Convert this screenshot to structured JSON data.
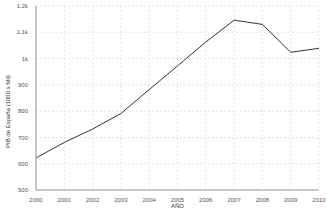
{
  "chart_data": {
    "type": "line",
    "x_label": "AÑO",
    "y_label": "PIB de España (1000 x Mil)",
    "x": [
      2000,
      2001,
      2002,
      2003,
      2004,
      2005,
      2006,
      2007,
      2008,
      2009,
      2010
    ],
    "values": [
      622,
      681,
      732,
      791,
      882,
      972,
      1063,
      1146,
      1130,
      1024,
      1039
    ],
    "color": "#333333",
    "xlim": [
      2000,
      2010
    ],
    "xticks": [
      2000,
      2001,
      2002,
      2003,
      2004,
      2005,
      2006,
      2007,
      2008,
      2009,
      2010
    ],
    "ylim": [
      500,
      1200
    ],
    "yticks": [
      500,
      600,
      700,
      800,
      900,
      {
        "value": 1000,
        "label": "1k"
      },
      {
        "value": 1100,
        "label": "1.1k"
      },
      {
        "value": 1200,
        "label": "1.2k"
      }
    ],
    "grid": true
  }
}
